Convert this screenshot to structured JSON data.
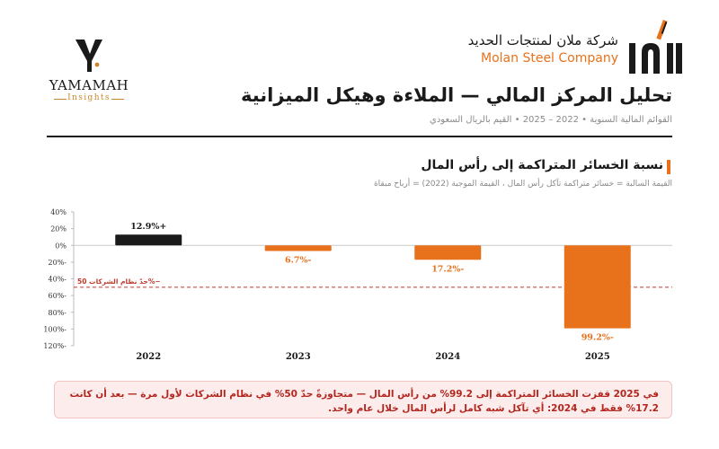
{
  "brand_left": {
    "name": "YAMAMAH",
    "sub": "Insights",
    "icon": "yamamah-y-logo-icon"
  },
  "brand_right": {
    "name_ar": "شركة ملان لمنتجات الحديد",
    "name_en": "Molan Steel Company",
    "icon": "molan-logo-icon"
  },
  "header": {
    "title": "تحليل المركز المالي — الملاءة وهيكل الميزانية",
    "subtitle": "القوائم المالية السنوية • 2022 – 2025 • القيم بالريال السعودي"
  },
  "colors": {
    "accent": "#e8711c",
    "positive": "#1a1a1a",
    "threshold": "#c0392b",
    "callout_text": "#b3261e"
  },
  "chart_section": {
    "title": "نسبة الخسائر المتراكمة إلى رأس المال",
    "note": "القيمة السالبة = خسائر متراكمة تآكل رأس المال ، القيمة الموجبة (2022) = أرباح مبقاة"
  },
  "chart_data": {
    "type": "bar",
    "categories": [
      "2022",
      "2023",
      "2024",
      "2025"
    ],
    "values": [
      12.9,
      -6.7,
      -17.2,
      -99.2
    ],
    "value_labels": [
      "12.9%+",
      "6.7%-",
      "17.2%-",
      "99.2%-"
    ],
    "ylim": [
      -120,
      40
    ],
    "yticks": [
      40,
      20,
      0,
      -20,
      -40,
      -60,
      -80,
      -100,
      -120
    ],
    "ytick_labels": [
      "40%",
      "20%",
      "0%",
      "20%-",
      "40%-",
      "60%-",
      "80%-",
      "100%-",
      "120%-"
    ],
    "grid": false,
    "threshold": {
      "value": -50,
      "label": "حدّ نظام الشركات 50%−"
    }
  },
  "callout": {
    "text": "في 2025 قفزت الخسائر المتراكمة إلى 99.2% من رأس المال — متجاوزةً حدّ 50% في نظام الشركات لأول مرة — بعد أن كانت 17.2% فقط في 2024: أي تآكل شبه كامل لرأس المال خلال عام واحد."
  }
}
